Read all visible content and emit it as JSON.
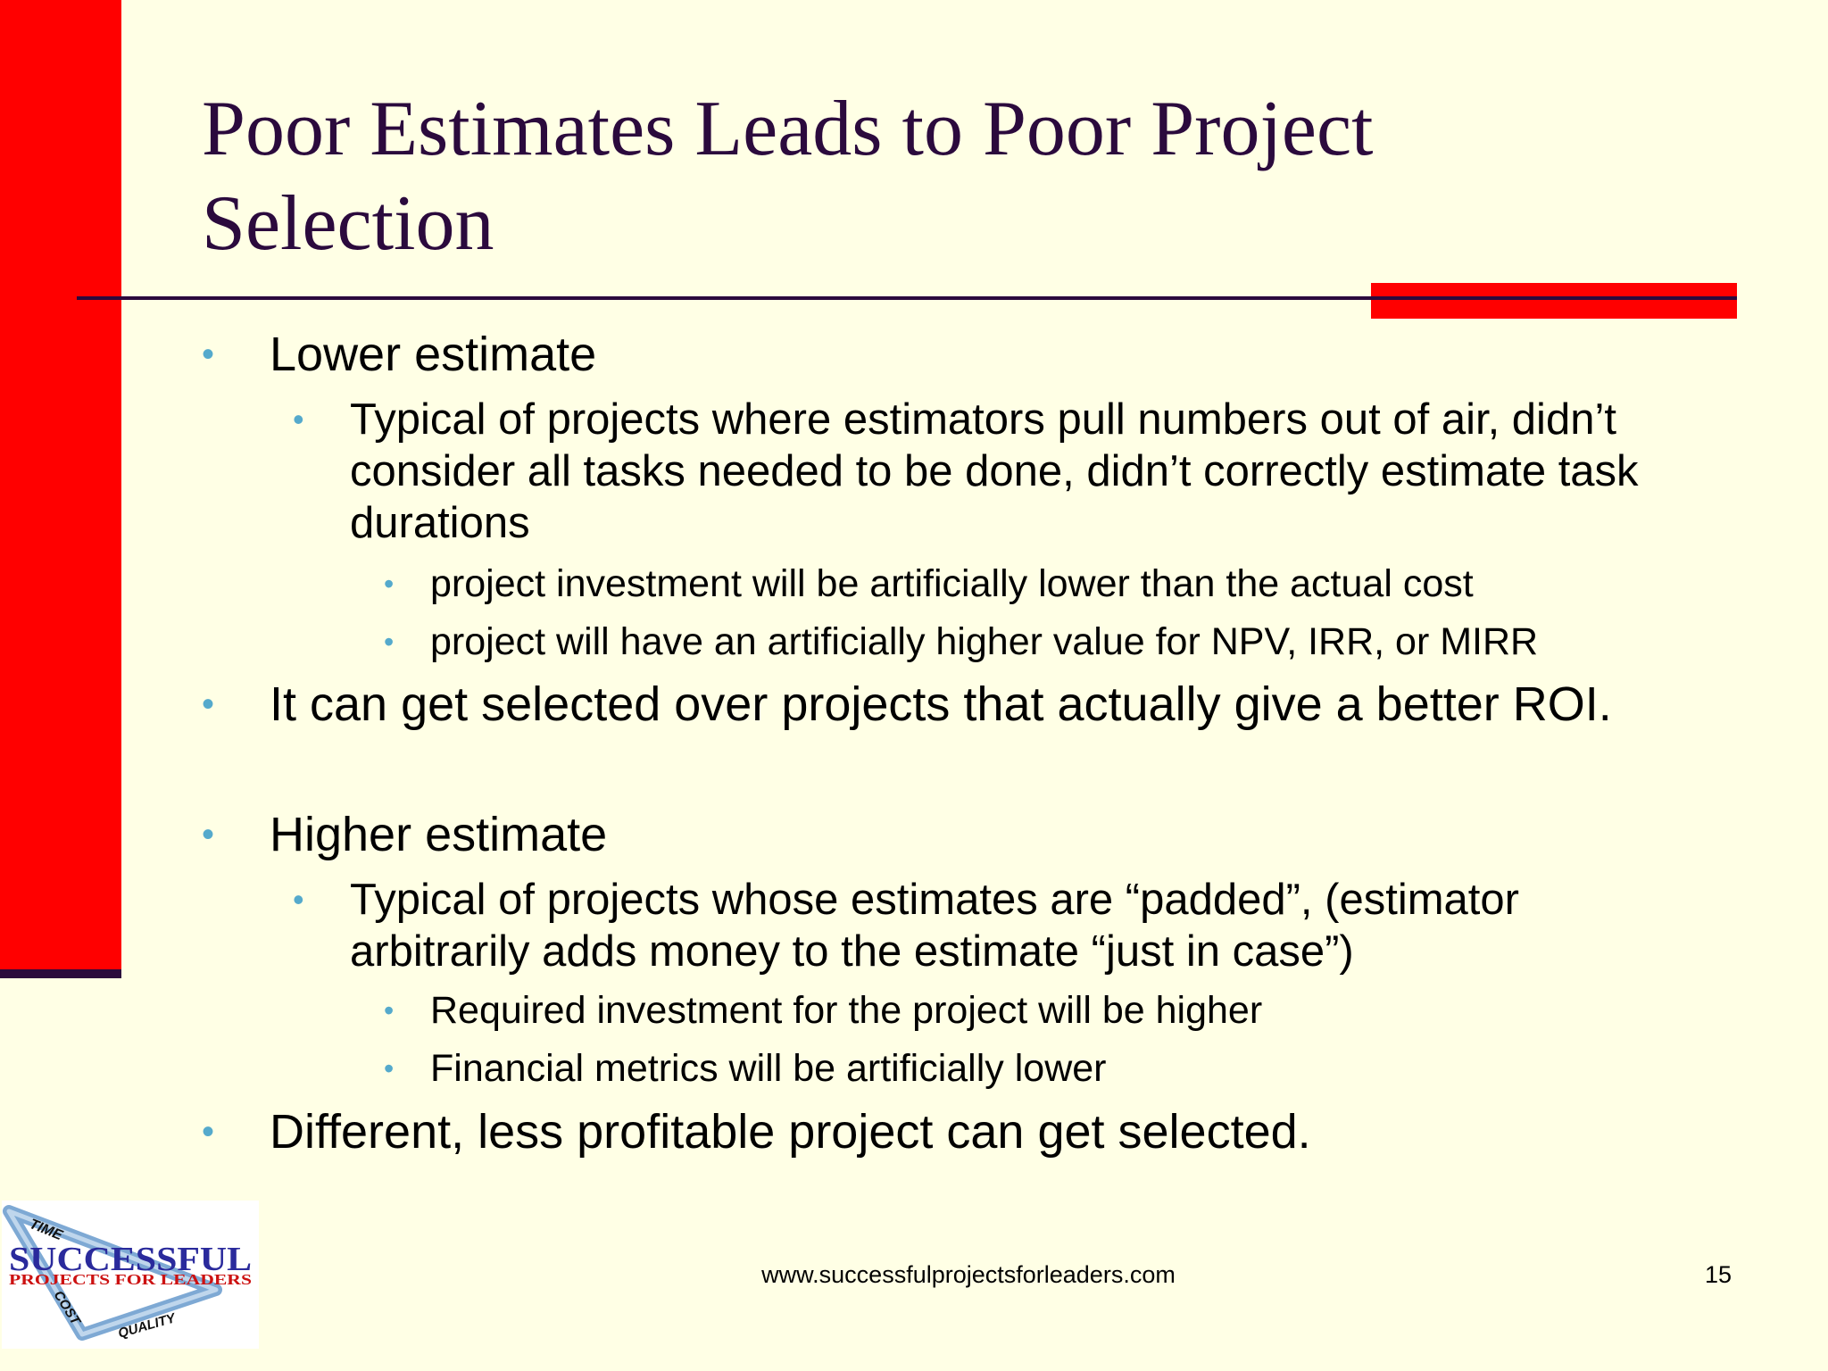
{
  "slide": {
    "title": "Poor Estimates Leads to Poor Project Selection",
    "bullets": [
      {
        "text": "Lower estimate"
      },
      {
        "text": "Typical of projects where estimators pull numbers out of air, didn’t consider all tasks needed to be done, didn’t correctly estimate task durations"
      },
      {
        "text": "project investment will be artificially lower than the actual cost"
      },
      {
        "text": "project will have an artificially higher value for NPV, IRR, or MIRR"
      },
      {
        "text": "It can get selected over projects that actually give a better ROI."
      },
      {
        "text": "Higher estimate"
      },
      {
        "text": "Typical of projects whose estimates are “padded”, (estimator arbitrarily adds money to the estimate “just in case”)"
      },
      {
        "text": "Required investment for the project will be higher"
      },
      {
        "text": "Financial metrics will be artificially lower"
      },
      {
        "text": "Different, less profitable project can get selected."
      }
    ],
    "bullet_glyph": "•"
  },
  "footer": {
    "url": "www.successfulprojectsforleaders.com",
    "page_number": "15"
  },
  "logo": {
    "main_text": "SUCCESSFUL",
    "sub_text": "PROJECTS FOR LEADERS",
    "triangle_labels": [
      "TIME",
      "COST",
      "QUALITY"
    ]
  },
  "colors": {
    "background": "#FFFFE5",
    "accent_red": "#FF0000",
    "title_purple": "#2B0A3D",
    "bullet_blue": "#55AACC"
  }
}
